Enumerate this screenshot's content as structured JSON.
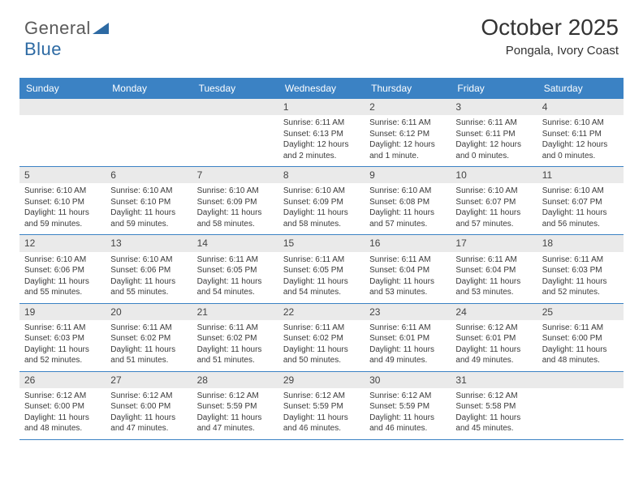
{
  "logo": {
    "text_gray": "General",
    "text_blue": "Blue"
  },
  "title": {
    "month": "October 2025",
    "location": "Pongala, Ivory Coast"
  },
  "colors": {
    "header_bar": "#3b82c4",
    "header_text": "#ffffff",
    "daynum_bg": "#eaeaea",
    "row_border": "#3b82c4",
    "body_text": "#3a3a3a"
  },
  "day_names": [
    "Sunday",
    "Monday",
    "Tuesday",
    "Wednesday",
    "Thursday",
    "Friday",
    "Saturday"
  ],
  "weeks": [
    [
      {
        "n": "",
        "sunrise": "",
        "sunset": "",
        "daylight1": "",
        "daylight2": ""
      },
      {
        "n": "",
        "sunrise": "",
        "sunset": "",
        "daylight1": "",
        "daylight2": ""
      },
      {
        "n": "",
        "sunrise": "",
        "sunset": "",
        "daylight1": "",
        "daylight2": ""
      },
      {
        "n": "1",
        "sunrise": "Sunrise: 6:11 AM",
        "sunset": "Sunset: 6:13 PM",
        "daylight1": "Daylight: 12 hours",
        "daylight2": "and 2 minutes."
      },
      {
        "n": "2",
        "sunrise": "Sunrise: 6:11 AM",
        "sunset": "Sunset: 6:12 PM",
        "daylight1": "Daylight: 12 hours",
        "daylight2": "and 1 minute."
      },
      {
        "n": "3",
        "sunrise": "Sunrise: 6:11 AM",
        "sunset": "Sunset: 6:11 PM",
        "daylight1": "Daylight: 12 hours",
        "daylight2": "and 0 minutes."
      },
      {
        "n": "4",
        "sunrise": "Sunrise: 6:10 AM",
        "sunset": "Sunset: 6:11 PM",
        "daylight1": "Daylight: 12 hours",
        "daylight2": "and 0 minutes."
      }
    ],
    [
      {
        "n": "5",
        "sunrise": "Sunrise: 6:10 AM",
        "sunset": "Sunset: 6:10 PM",
        "daylight1": "Daylight: 11 hours",
        "daylight2": "and 59 minutes."
      },
      {
        "n": "6",
        "sunrise": "Sunrise: 6:10 AM",
        "sunset": "Sunset: 6:10 PM",
        "daylight1": "Daylight: 11 hours",
        "daylight2": "and 59 minutes."
      },
      {
        "n": "7",
        "sunrise": "Sunrise: 6:10 AM",
        "sunset": "Sunset: 6:09 PM",
        "daylight1": "Daylight: 11 hours",
        "daylight2": "and 58 minutes."
      },
      {
        "n": "8",
        "sunrise": "Sunrise: 6:10 AM",
        "sunset": "Sunset: 6:09 PM",
        "daylight1": "Daylight: 11 hours",
        "daylight2": "and 58 minutes."
      },
      {
        "n": "9",
        "sunrise": "Sunrise: 6:10 AM",
        "sunset": "Sunset: 6:08 PM",
        "daylight1": "Daylight: 11 hours",
        "daylight2": "and 57 minutes."
      },
      {
        "n": "10",
        "sunrise": "Sunrise: 6:10 AM",
        "sunset": "Sunset: 6:07 PM",
        "daylight1": "Daylight: 11 hours",
        "daylight2": "and 57 minutes."
      },
      {
        "n": "11",
        "sunrise": "Sunrise: 6:10 AM",
        "sunset": "Sunset: 6:07 PM",
        "daylight1": "Daylight: 11 hours",
        "daylight2": "and 56 minutes."
      }
    ],
    [
      {
        "n": "12",
        "sunrise": "Sunrise: 6:10 AM",
        "sunset": "Sunset: 6:06 PM",
        "daylight1": "Daylight: 11 hours",
        "daylight2": "and 55 minutes."
      },
      {
        "n": "13",
        "sunrise": "Sunrise: 6:10 AM",
        "sunset": "Sunset: 6:06 PM",
        "daylight1": "Daylight: 11 hours",
        "daylight2": "and 55 minutes."
      },
      {
        "n": "14",
        "sunrise": "Sunrise: 6:11 AM",
        "sunset": "Sunset: 6:05 PM",
        "daylight1": "Daylight: 11 hours",
        "daylight2": "and 54 minutes."
      },
      {
        "n": "15",
        "sunrise": "Sunrise: 6:11 AM",
        "sunset": "Sunset: 6:05 PM",
        "daylight1": "Daylight: 11 hours",
        "daylight2": "and 54 minutes."
      },
      {
        "n": "16",
        "sunrise": "Sunrise: 6:11 AM",
        "sunset": "Sunset: 6:04 PM",
        "daylight1": "Daylight: 11 hours",
        "daylight2": "and 53 minutes."
      },
      {
        "n": "17",
        "sunrise": "Sunrise: 6:11 AM",
        "sunset": "Sunset: 6:04 PM",
        "daylight1": "Daylight: 11 hours",
        "daylight2": "and 53 minutes."
      },
      {
        "n": "18",
        "sunrise": "Sunrise: 6:11 AM",
        "sunset": "Sunset: 6:03 PM",
        "daylight1": "Daylight: 11 hours",
        "daylight2": "and 52 minutes."
      }
    ],
    [
      {
        "n": "19",
        "sunrise": "Sunrise: 6:11 AM",
        "sunset": "Sunset: 6:03 PM",
        "daylight1": "Daylight: 11 hours",
        "daylight2": "and 52 minutes."
      },
      {
        "n": "20",
        "sunrise": "Sunrise: 6:11 AM",
        "sunset": "Sunset: 6:02 PM",
        "daylight1": "Daylight: 11 hours",
        "daylight2": "and 51 minutes."
      },
      {
        "n": "21",
        "sunrise": "Sunrise: 6:11 AM",
        "sunset": "Sunset: 6:02 PM",
        "daylight1": "Daylight: 11 hours",
        "daylight2": "and 51 minutes."
      },
      {
        "n": "22",
        "sunrise": "Sunrise: 6:11 AM",
        "sunset": "Sunset: 6:02 PM",
        "daylight1": "Daylight: 11 hours",
        "daylight2": "and 50 minutes."
      },
      {
        "n": "23",
        "sunrise": "Sunrise: 6:11 AM",
        "sunset": "Sunset: 6:01 PM",
        "daylight1": "Daylight: 11 hours",
        "daylight2": "and 49 minutes."
      },
      {
        "n": "24",
        "sunrise": "Sunrise: 6:12 AM",
        "sunset": "Sunset: 6:01 PM",
        "daylight1": "Daylight: 11 hours",
        "daylight2": "and 49 minutes."
      },
      {
        "n": "25",
        "sunrise": "Sunrise: 6:11 AM",
        "sunset": "Sunset: 6:00 PM",
        "daylight1": "Daylight: 11 hours",
        "daylight2": "and 48 minutes."
      }
    ],
    [
      {
        "n": "26",
        "sunrise": "Sunrise: 6:12 AM",
        "sunset": "Sunset: 6:00 PM",
        "daylight1": "Daylight: 11 hours",
        "daylight2": "and 48 minutes."
      },
      {
        "n": "27",
        "sunrise": "Sunrise: 6:12 AM",
        "sunset": "Sunset: 6:00 PM",
        "daylight1": "Daylight: 11 hours",
        "daylight2": "and 47 minutes."
      },
      {
        "n": "28",
        "sunrise": "Sunrise: 6:12 AM",
        "sunset": "Sunset: 5:59 PM",
        "daylight1": "Daylight: 11 hours",
        "daylight2": "and 47 minutes."
      },
      {
        "n": "29",
        "sunrise": "Sunrise: 6:12 AM",
        "sunset": "Sunset: 5:59 PM",
        "daylight1": "Daylight: 11 hours",
        "daylight2": "and 46 minutes."
      },
      {
        "n": "30",
        "sunrise": "Sunrise: 6:12 AM",
        "sunset": "Sunset: 5:59 PM",
        "daylight1": "Daylight: 11 hours",
        "daylight2": "and 46 minutes."
      },
      {
        "n": "31",
        "sunrise": "Sunrise: 6:12 AM",
        "sunset": "Sunset: 5:58 PM",
        "daylight1": "Daylight: 11 hours",
        "daylight2": "and 45 minutes."
      },
      {
        "n": "",
        "sunrise": "",
        "sunset": "",
        "daylight1": "",
        "daylight2": ""
      }
    ]
  ]
}
